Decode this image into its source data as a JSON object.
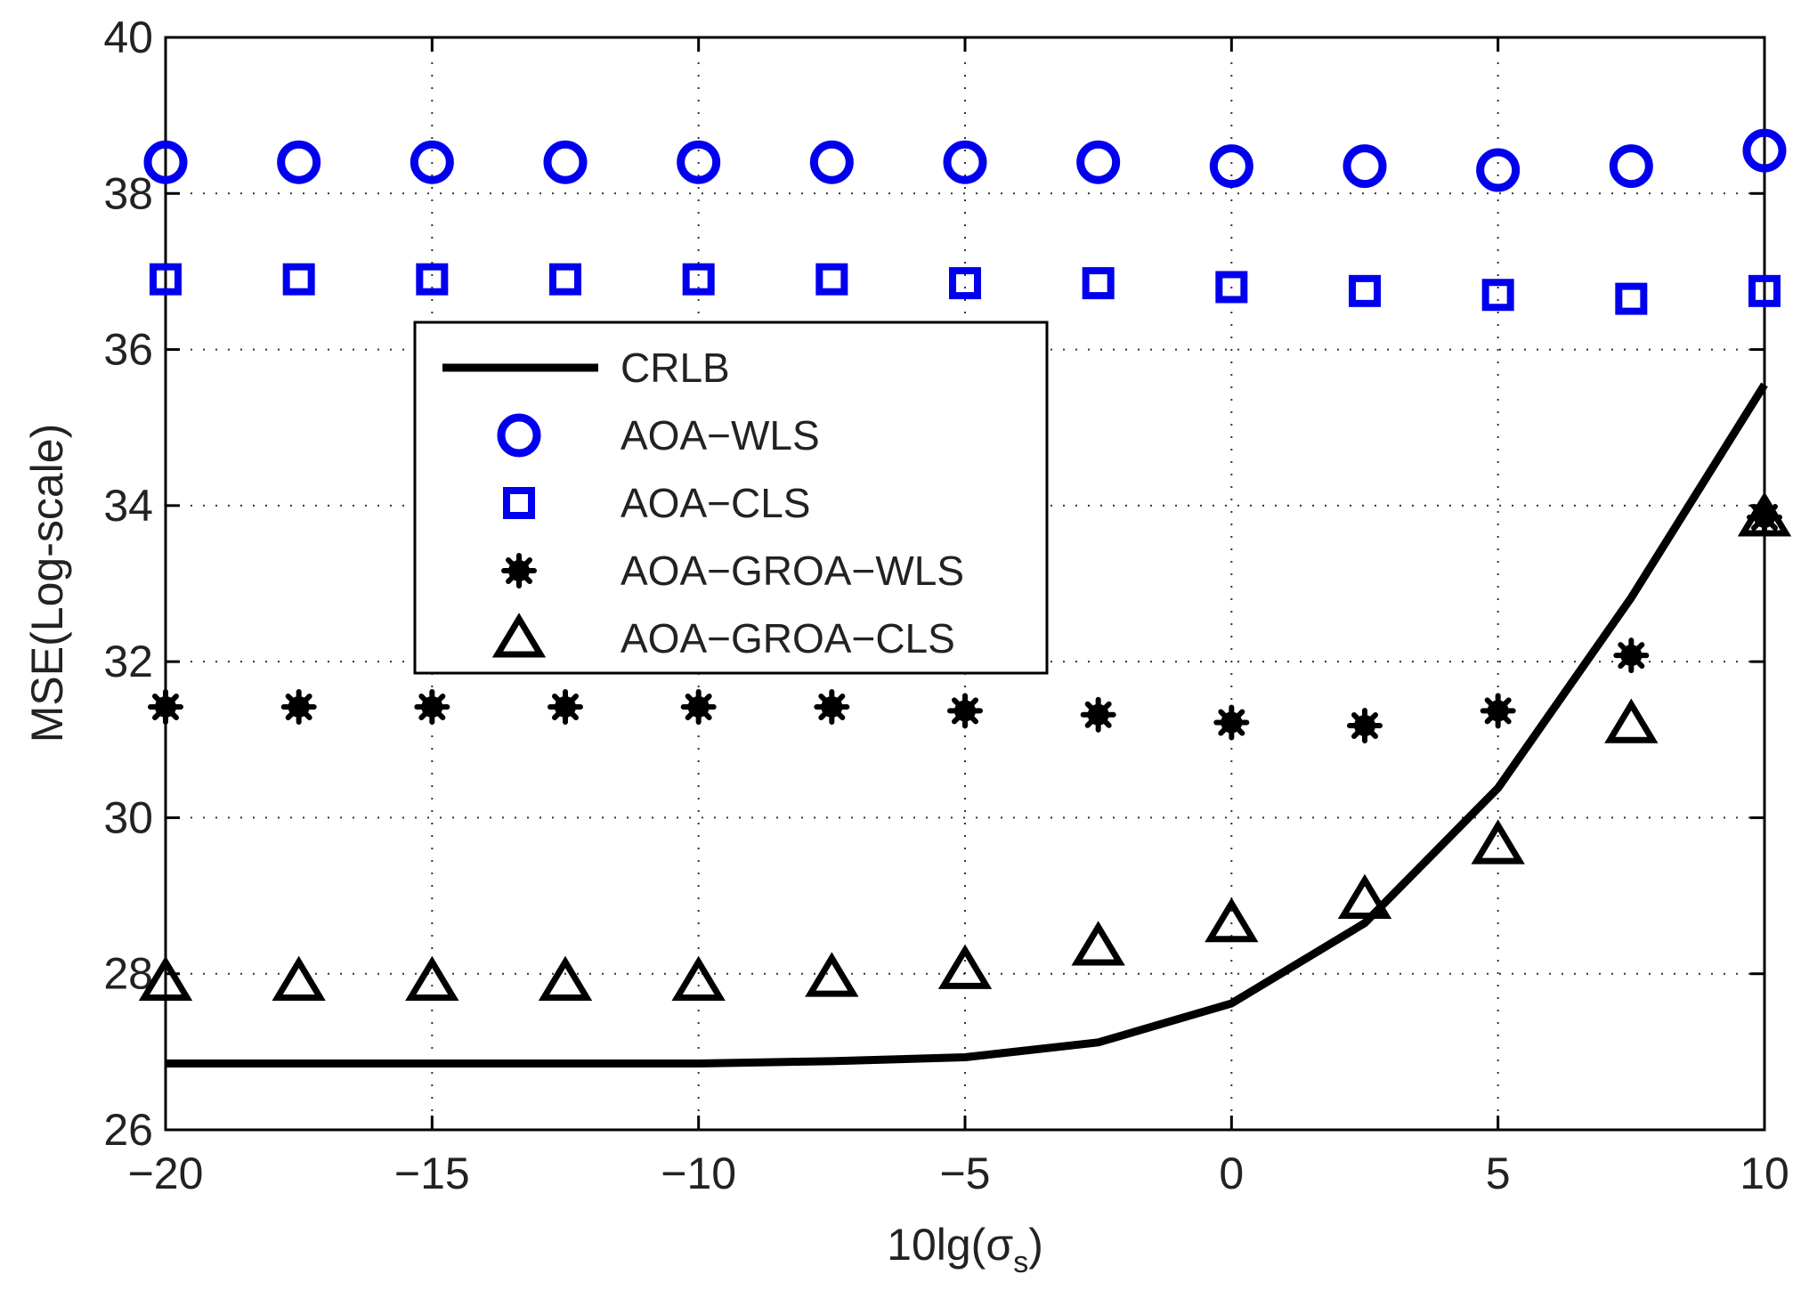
{
  "chart_data": {
    "type": "line",
    "title": "",
    "xlabel_main": "10lg(",
    "xlabel_sigma": "σ",
    "xlabel_sub": "s",
    "xlabel_close": ")",
    "ylabel": "MSE(Log-scale)",
    "xlim": [
      -20,
      10
    ],
    "ylim": [
      26,
      40
    ],
    "xticks": [
      -20,
      -15,
      -10,
      -5,
      0,
      5,
      10
    ],
    "xtick_labels": [
      "−20",
      "−15",
      "−10",
      "−5",
      "0",
      "5",
      "10"
    ],
    "yticks": [
      26,
      28,
      30,
      32,
      34,
      36,
      38,
      40
    ],
    "ytick_labels": [
      "26",
      "28",
      "30",
      "32",
      "34",
      "36",
      "38",
      "40"
    ],
    "grid": true,
    "legend_position": "center-left",
    "x": [
      -20,
      -17.5,
      -15,
      -12.5,
      -10,
      -7.5,
      -5,
      -2.5,
      0,
      2.5,
      5,
      7.5,
      10
    ],
    "series": [
      {
        "name": "CRLB",
        "marker": "line",
        "color": "#000000",
        "values": [
          26.85,
          26.85,
          26.85,
          26.85,
          26.85,
          26.88,
          26.93,
          27.12,
          27.62,
          28.65,
          30.38,
          32.82,
          35.55
        ]
      },
      {
        "name": "AOA−WLS",
        "marker": "circle",
        "color": "#0000ee",
        "values": [
          38.4,
          38.4,
          38.4,
          38.4,
          38.4,
          38.4,
          38.4,
          38.4,
          38.35,
          38.35,
          38.3,
          38.35,
          38.55
        ]
      },
      {
        "name": "AOA−CLS",
        "marker": "square",
        "color": "#0000ee",
        "values": [
          36.9,
          36.9,
          36.9,
          36.9,
          36.9,
          36.9,
          36.85,
          36.85,
          36.8,
          36.75,
          36.7,
          36.65,
          36.75
        ]
      },
      {
        "name": "AOA−GROA−WLS",
        "marker": "star",
        "color": "#000000",
        "values": [
          31.42,
          31.42,
          31.42,
          31.42,
          31.42,
          31.42,
          31.37,
          31.32,
          31.22,
          31.18,
          31.37,
          32.08,
          33.85
        ]
      },
      {
        "name": "AOA−GROA−CLS",
        "marker": "triangle",
        "color": "#000000",
        "values": [
          27.9,
          27.9,
          27.9,
          27.9,
          27.9,
          27.95,
          28.05,
          28.35,
          28.65,
          28.95,
          29.65,
          31.2,
          33.85
        ]
      }
    ]
  }
}
